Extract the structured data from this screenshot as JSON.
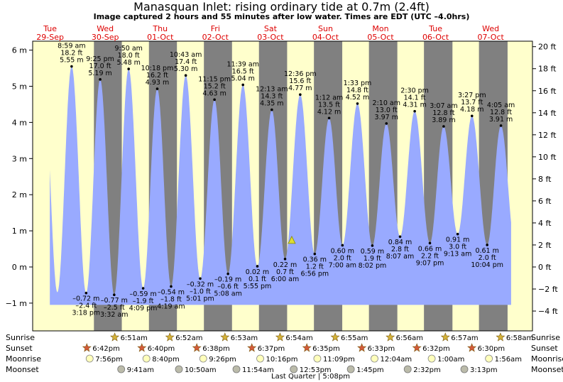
{
  "title": "Manasquan Inlet: rising  ordinary tide at 0.7m (2.4ft)",
  "subtitle": "Image captured 2 hours and 55 minutes after low water. Times are EDT (UTC –4.0hrs)",
  "colors": {
    "day": "#ffffcc",
    "night": "#808080",
    "tide": "#99aaff",
    "day_label": "#dd0000",
    "sun_star": "#d4b23a",
    "sunset_star": "#d45a3a",
    "moonrise": "#ffffbb",
    "moonset": "#bbbbaa",
    "current_marker": "#dddd33"
  },
  "chart_data": {
    "type": "area",
    "title": "Manasquan Inlet: rising  ordinary tide at 0.7m (2.4ft)",
    "subtitle": "Image captured 2 hours and 55 minutes after low water. Times are EDT (UTC –4.0hrs)",
    "x_unit": "hours since Tue 29-Sep 00:00 EDT",
    "xlim": [
      -8,
      212
    ],
    "ylim": [
      -1.6,
      6.3
    ],
    "y_left_ticks": [
      -1,
      0,
      1,
      2,
      3,
      4,
      5,
      6
    ],
    "y_left_unit": "m",
    "y_right_ticks": [
      -4,
      -2,
      0,
      2,
      4,
      6,
      8,
      10,
      12,
      14,
      16,
      18,
      20
    ],
    "y_right_unit": "ft",
    "days": [
      {
        "name": "Tue",
        "date": "29-Sep"
      },
      {
        "name": "Wed",
        "date": "30-Sep"
      },
      {
        "name": "Thu",
        "date": "01-Oct"
      },
      {
        "name": "Fri",
        "date": "02-Oct"
      },
      {
        "name": "Sat",
        "date": "03-Oct"
      },
      {
        "name": "Sun",
        "date": "04-Oct"
      },
      {
        "name": "Mon",
        "date": "05-Oct"
      },
      {
        "name": "Tue",
        "date": "06-Oct"
      },
      {
        "name": "Wed",
        "date": "07-Oct"
      }
    ],
    "high_tides": [
      {
        "time": "8:59 am",
        "ft": "18.2 ft",
        "m": "5.55 m",
        "hour": 8.98,
        "value": 5.55
      },
      {
        "time": "9:25 pm",
        "ft": "17.0 ft",
        "m": "5.19 m",
        "hour": 21.42,
        "value": 5.19
      },
      {
        "time": "9:50 am",
        "ft": "18.0 ft",
        "m": "5.48 m",
        "hour": 33.83,
        "value": 5.48
      },
      {
        "time": "10:18 pm",
        "ft": "16.2 ft",
        "m": "4.93 m",
        "hour": 46.3,
        "value": 4.93
      },
      {
        "time": "10:43 am",
        "ft": "17.4 ft",
        "m": "5.30 m",
        "hour": 58.72,
        "value": 5.3
      },
      {
        "time": "11:15 pm",
        "ft": "15.2 ft",
        "m": "4.63 m",
        "hour": 71.25,
        "value": 4.63
      },
      {
        "time": "11:39 am",
        "ft": "16.5 ft",
        "m": "5.04 m",
        "hour": 83.65,
        "value": 5.04
      },
      {
        "time": "12:13 am",
        "ft": "14.3 ft",
        "m": "4.35 m",
        "hour": 96.22,
        "value": 4.35
      },
      {
        "time": "12:36 pm",
        "ft": "15.6 ft",
        "m": "4.77 m",
        "hour": 108.6,
        "value": 4.77
      },
      {
        "time": "1:12 am",
        "ft": "13.5 ft",
        "m": "4.12 m",
        "hour": 121.2,
        "value": 4.12
      },
      {
        "time": "1:33 pm",
        "ft": "14.8 ft",
        "m": "4.52 m",
        "hour": 133.55,
        "value": 4.52
      },
      {
        "time": "2:10 am",
        "ft": "13.0 ft",
        "m": "3.97 m",
        "hour": 146.17,
        "value": 3.97
      },
      {
        "time": "2:30 pm",
        "ft": "14.1 ft",
        "m": "4.31 m",
        "hour": 158.5,
        "value": 4.31
      },
      {
        "time": "3:07 am",
        "ft": "12.8 ft",
        "m": "3.89 m",
        "hour": 171.12,
        "value": 3.89
      },
      {
        "time": "3:27 pm",
        "ft": "13.7 ft",
        "m": "4.18 m",
        "hour": 183.45,
        "value": 4.18
      },
      {
        "time": "4:05 am",
        "ft": "12.8 ft",
        "m": "3.91 m",
        "hour": 196.08,
        "value": 3.91
      }
    ],
    "low_tides": [
      {
        "time": "3:18 pm",
        "ft": "–2.4 ft",
        "m": "–0.72 m",
        "hour": 15.3,
        "value": -0.72
      },
      {
        "time": "3:32 am",
        "ft": "–2.5 ft",
        "m": "–0.77 m",
        "hour": 27.53,
        "value": -0.77
      },
      {
        "time": "4:09 pm",
        "ft": "–1.9 ft",
        "m": "–0.59 m",
        "hour": 40.15,
        "value": -0.59
      },
      {
        "time": "4:19 am",
        "ft": "–1.8 ft",
        "m": "–0.54 m",
        "hour": 52.32,
        "value": -0.54
      },
      {
        "time": "5:01 pm",
        "ft": "–1.0 ft",
        "m": "–0.32 m",
        "hour": 65.02,
        "value": -0.32
      },
      {
        "time": "5:08 am",
        "ft": "–0.6 ft",
        "m": "–0.19 m",
        "hour": 77.13,
        "value": -0.19
      },
      {
        "time": "5:55 pm",
        "ft": "0.1 ft",
        "m": "0.02 m",
        "hour": 89.92,
        "value": 0.02
      },
      {
        "time": "6:00 am",
        "ft": "0.7 ft",
        "m": "0.22 m",
        "hour": 102.0,
        "value": 0.22
      },
      {
        "time": "6:56 pm",
        "ft": "1.2 ft",
        "m": "0.36 m",
        "hour": 114.93,
        "value": 0.36
      },
      {
        "time": "7:00 am",
        "ft": "2.0 ft",
        "m": "0.60 m",
        "hour": 127.0,
        "value": 0.6
      },
      {
        "time": "8:02 pm",
        "ft": "1.9 ft",
        "m": "0.59 m",
        "hour": 140.03,
        "value": 0.59
      },
      {
        "time": "8:07 am",
        "ft": "2.8 ft",
        "m": "0.84 m",
        "hour": 152.12,
        "value": 0.84
      },
      {
        "time": "9:07 pm",
        "ft": "2.2 ft",
        "m": "0.66 m",
        "hour": 165.12,
        "value": 0.66
      },
      {
        "time": "9:13 am",
        "ft": "3.0 ft",
        "m": "0.91 m",
        "hour": 177.22,
        "value": 0.91
      },
      {
        "time": "10:04 pm",
        "ft": "2.0 ft",
        "m": "0.61 m",
        "hour": 190.07,
        "value": 0.61
      }
    ],
    "current": {
      "hour": 104.92,
      "value": 0.73
    },
    "sunrise": [
      {
        "time": "6:51am",
        "hour": 30.85
      },
      {
        "time": "6:52am",
        "hour": 54.87
      },
      {
        "time": "6:53am",
        "hour": 78.88
      },
      {
        "time": "6:54am",
        "hour": 102.9
      },
      {
        "time": "6:55am",
        "hour": 126.92
      },
      {
        "time": "6:56am",
        "hour": 150.93
      },
      {
        "time": "6:57am",
        "hour": 174.95
      },
      {
        "time": "6:58am",
        "hour": 198.97
      }
    ],
    "sunset": [
      {
        "time": "6:42pm",
        "hour": 18.7
      },
      {
        "time": "6:40pm",
        "hour": 42.67
      },
      {
        "time": "6:38pm",
        "hour": 66.63
      },
      {
        "time": "6:37pm",
        "hour": 90.62
      },
      {
        "time": "6:35pm",
        "hour": 114.58
      },
      {
        "time": "6:33pm",
        "hour": 138.55
      },
      {
        "time": "6:32pm",
        "hour": 162.53
      },
      {
        "time": "6:30pm",
        "hour": 186.5
      }
    ],
    "moonrise": [
      {
        "time": "7:56pm",
        "hour": 19.93
      },
      {
        "time": "8:40pm",
        "hour": 44.67
      },
      {
        "time": "9:26pm",
        "hour": 69.43
      },
      {
        "time": "10:16pm",
        "hour": 94.27
      },
      {
        "time": "11:09pm",
        "hour": 119.15
      },
      {
        "time": "12:04am",
        "hour": 144.07
      },
      {
        "time": "1:00am",
        "hour": 169.0
      },
      {
        "time": "1:56am",
        "hour": 193.93
      }
    ],
    "moonset": [
      {
        "time": "9:41am",
        "hour": 33.68
      },
      {
        "time": "10:50am",
        "hour": 58.83
      },
      {
        "time": "11:54am",
        "hour": 83.9
      },
      {
        "time": "12:53pm",
        "hour": 108.88
      },
      {
        "time": "1:45pm",
        "hour": 133.75
      },
      {
        "time": "2:32pm",
        "hour": 158.53
      },
      {
        "time": "3:13pm",
        "hour": 183.22
      }
    ],
    "moon_phase": {
      "label": "Last Quarter | 5:08pm",
      "hour": 113.13
    },
    "row_labels": [
      "Sunrise",
      "Sunset",
      "Moonrise",
      "Moonset"
    ]
  }
}
